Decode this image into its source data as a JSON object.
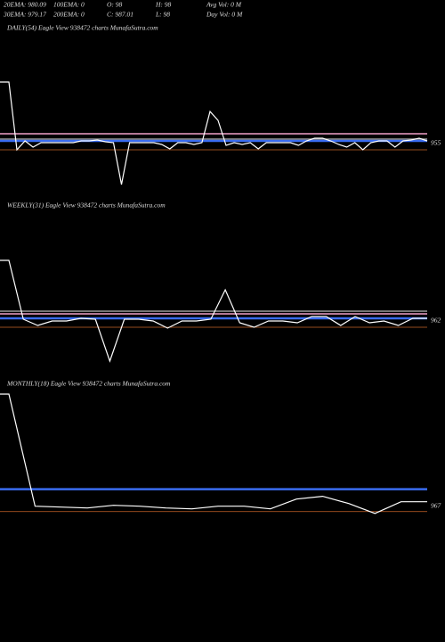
{
  "header": {
    "rows": [
      [
        "20EMA: 980.09",
        "100EMA: 0",
        "O: 98",
        "H: 98",
        "Avg Vol: 0  M"
      ],
      [
        "30EMA: 979.17",
        "200EMA: 0",
        "C: 987.01",
        "L: 98",
        "Day Vol: 0  M"
      ]
    ]
  },
  "chart_data": [
    {
      "type": "line",
      "title": "DAILY(54) Eagle  View  938472  charts MunafaSutra.com",
      "color": "#ffffff",
      "ylim": [
        925,
        1015
      ],
      "price_label": 955,
      "levels": [
        {
          "value": 960,
          "color": "#f0a0c8"
        },
        {
          "value": 957,
          "color": "#9a9a9a"
        },
        {
          "value": 956,
          "color": "#3a6cf0"
        },
        {
          "value": 951,
          "color": "#c86428"
        }
      ],
      "values": [
        989,
        989,
        951,
        956,
        952.5,
        955,
        955,
        955,
        955,
        955,
        956,
        956,
        956.5,
        955.5,
        955,
        931.5,
        955,
        955,
        955,
        955,
        954,
        951.5,
        955,
        955,
        954,
        955,
        972.5,
        967.5,
        953.5,
        955,
        954,
        955,
        951.5,
        955,
        955,
        955,
        955,
        953.5,
        956,
        957.5,
        957.5,
        956,
        954,
        952.5,
        955,
        951,
        955,
        956,
        956,
        952.5,
        956,
        956.5,
        957.5,
        956
      ]
    },
    {
      "type": "line",
      "title": "WEEKLY(31) Eagle  View  938472  charts MunafaSutra.com",
      "color": "#ffffff",
      "ylim": [
        931,
        1026
      ],
      "price_label": 962,
      "levels": [
        {
          "value": 967,
          "color": "#9a9a9a"
        },
        {
          "value": 965.5,
          "color": "#f0a0c8"
        },
        {
          "value": 963,
          "color": "#3a6cf0"
        },
        {
          "value": 958,
          "color": "#c86428"
        }
      ],
      "values": [
        995.5,
        995.5,
        962.5,
        959,
        961.5,
        961.5,
        963,
        962.5,
        939,
        962.5,
        962.5,
        961.5,
        957.5,
        961.5,
        961.5,
        962.5,
        979,
        960.5,
        958,
        961.5,
        961.5,
        960.5,
        964,
        964,
        959,
        964,
        960.5,
        961.5,
        959,
        963,
        963
      ]
    },
    {
      "type": "line",
      "title": "MONTHLY(18) Eagle  View  938472  charts MunafaSutra.com",
      "color": "#ffffff",
      "ylim": [
        940,
        1030
      ],
      "price_label": 967,
      "levels": [
        {
          "value": 976,
          "color": "#3a6cf0"
        },
        {
          "value": 963.5,
          "color": "#c86428"
        }
      ],
      "values": [
        1029,
        1029,
        966.5,
        966,
        965.5,
        967,
        966.5,
        965.5,
        965,
        966.5,
        966.5,
        965,
        970.5,
        972,
        968,
        962.5,
        969,
        969
      ]
    }
  ]
}
